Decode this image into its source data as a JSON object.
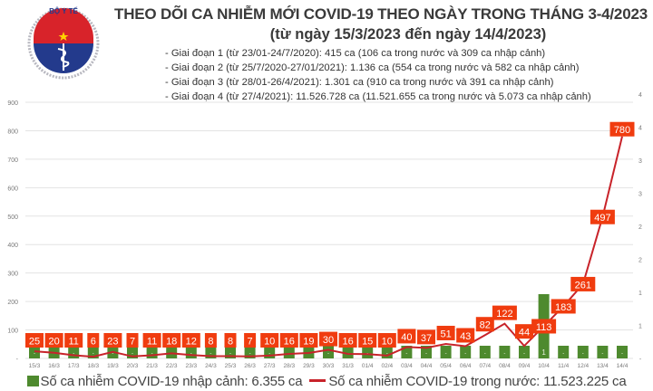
{
  "header": {
    "logo": {
      "top_text": "BỘ Y TẾ",
      "bottom_text": "MINISTRY OF HEALTH"
    },
    "title": "THEO DÕI CA NHIỄM MỚI COVID-19 THEO NGÀY TRONG THÁNG 3-4/2023",
    "subtitle": "(từ ngày 15/3/2023 đến ngày 14/4/2023)",
    "phases": [
      "- Giai đoạn 1 (từ 23/01-24/7/2020): 415 ca (106 ca trong nước và 309 ca nhập cảnh)",
      "- Giai đoạn 2 (từ 25/7/2020-27/01/2021): 1.136 ca (554 ca trong nước và 582 ca nhập cảnh)",
      "- Giai đoạn 3 (từ 28/01-26/4/2021): 1.301 ca (910 ca trong nước và 391 ca nhập cảnh)",
      "- Giai đoạn 4 (từ 27/4/2021): 11.526.728 ca (11.521.655 ca trong nước và 5.073 ca nhập cảnh)"
    ]
  },
  "legend": {
    "imported_label": "Số ca nhiễm COVID-19 nhập cảnh: 6.355 ca",
    "domestic_label": "Số ca nhiễm COVID-19 trong nước: 11.523.225 ca"
  },
  "colors": {
    "bar": "#4e8a2e",
    "line": "#c8232a",
    "label_box": "#f03c0f",
    "grid": "#e3e3e3",
    "axis_text": "#7a7a7a"
  },
  "chart_data": {
    "type": "bar+line",
    "title": "THEO DÕI CA NHIỄM MỚI COVID-19 THEO NGÀY TRONG THÁNG 3-4/2023",
    "subtitle": "(từ ngày 15/3/2023 đến ngày 14/4/2023)",
    "categories": [
      "15/3",
      "16/3",
      "17/3",
      "18/3",
      "19/3",
      "20/3",
      "21/3",
      "22/3",
      "23/3",
      "24/3",
      "25/3",
      "26/3",
      "27/3",
      "28/3",
      "29/3",
      "30/3",
      "31/3",
      "01/4",
      "02/4",
      "03/4",
      "04/4",
      "05/4",
      "06/4",
      "07/4",
      "08/4",
      "09/4",
      "10/4",
      "11/4",
      "12/4",
      "13/4",
      "14/4"
    ],
    "series": [
      {
        "name": "Số ca nhiễm COVID-19 trong nước",
        "type": "line",
        "axis": "left",
        "values": [
          25,
          20,
          11,
          6,
          23,
          7,
          11,
          18,
          12,
          8,
          8,
          7,
          10,
          16,
          19,
          30,
          16,
          15,
          10,
          40,
          37,
          51,
          43,
          82,
          122,
          44,
          113,
          183,
          261,
          497,
          780
        ]
      },
      {
        "name": "Số ca nhiễm COVID-19 nhập cảnh",
        "type": "bar",
        "axis": "right",
        "values": [
          0,
          0,
          0,
          0,
          0,
          0,
          0,
          0,
          0,
          0,
          0,
          0,
          0,
          0,
          0,
          0,
          0,
          0,
          0,
          0,
          0,
          0,
          0,
          0,
          0,
          0,
          1,
          0,
          0,
          0,
          0
        ],
        "bar_labels": [
          "-",
          "-",
          "-",
          "-",
          "-",
          "-",
          "-",
          "-",
          "-",
          "-",
          "-",
          "-",
          "-",
          "-",
          "-",
          "-",
          "-",
          "-",
          "-",
          "-",
          "-",
          "-",
          "-",
          "-",
          "-",
          "-",
          "1",
          "-",
          "-",
          "-",
          "-"
        ]
      }
    ],
    "left_axis": {
      "ticks": [
        "-",
        "100",
        "200",
        "300",
        "400",
        "500",
        "600",
        "700",
        "800",
        "900"
      ],
      "ylim": [
        0,
        900
      ]
    },
    "right_axis": {
      "ticks": [
        "-",
        "1",
        "1",
        "2",
        "2",
        "3",
        "3",
        "4",
        "4"
      ]
    },
    "grid": true,
    "legend_position": "bottom"
  }
}
